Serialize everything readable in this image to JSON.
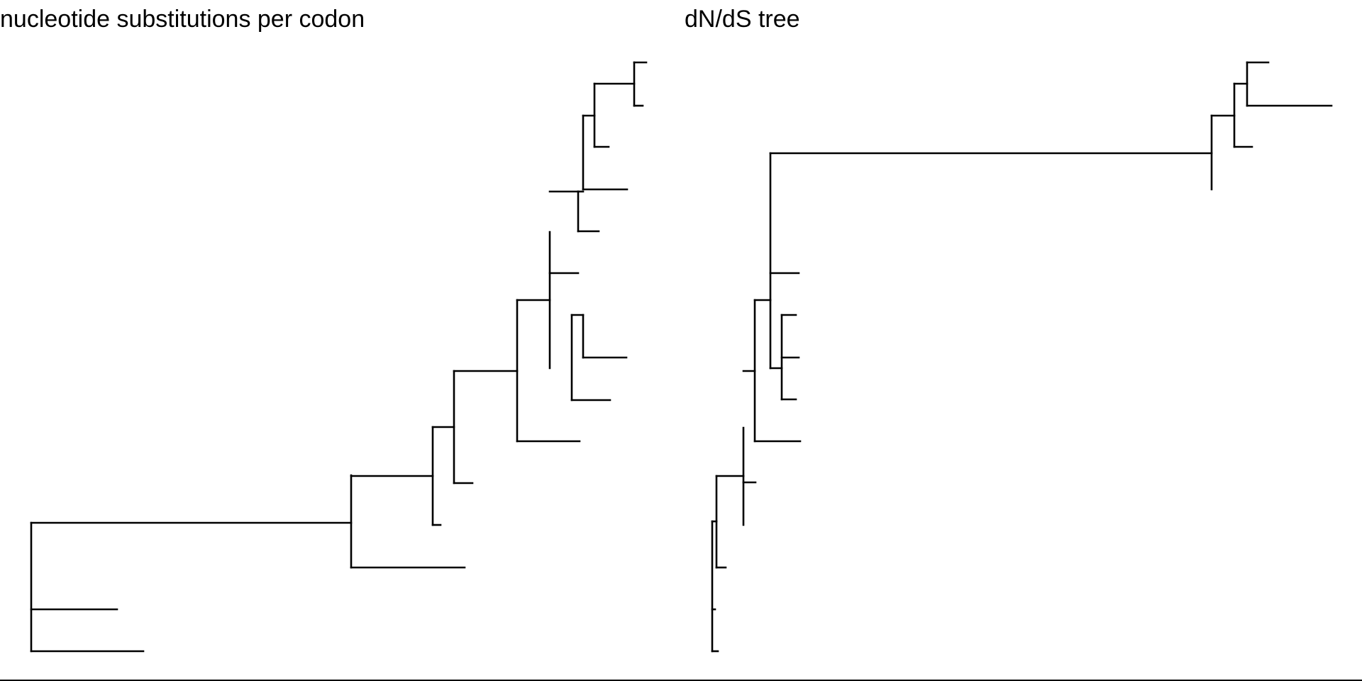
{
  "panels": [
    {
      "id": "left",
      "title": "nucleotide substitutions per codon"
    },
    {
      "id": "right",
      "title": "dN/dS tree"
    }
  ],
  "colors": {
    "background": "#ffffff",
    "line": "#000000"
  }
}
